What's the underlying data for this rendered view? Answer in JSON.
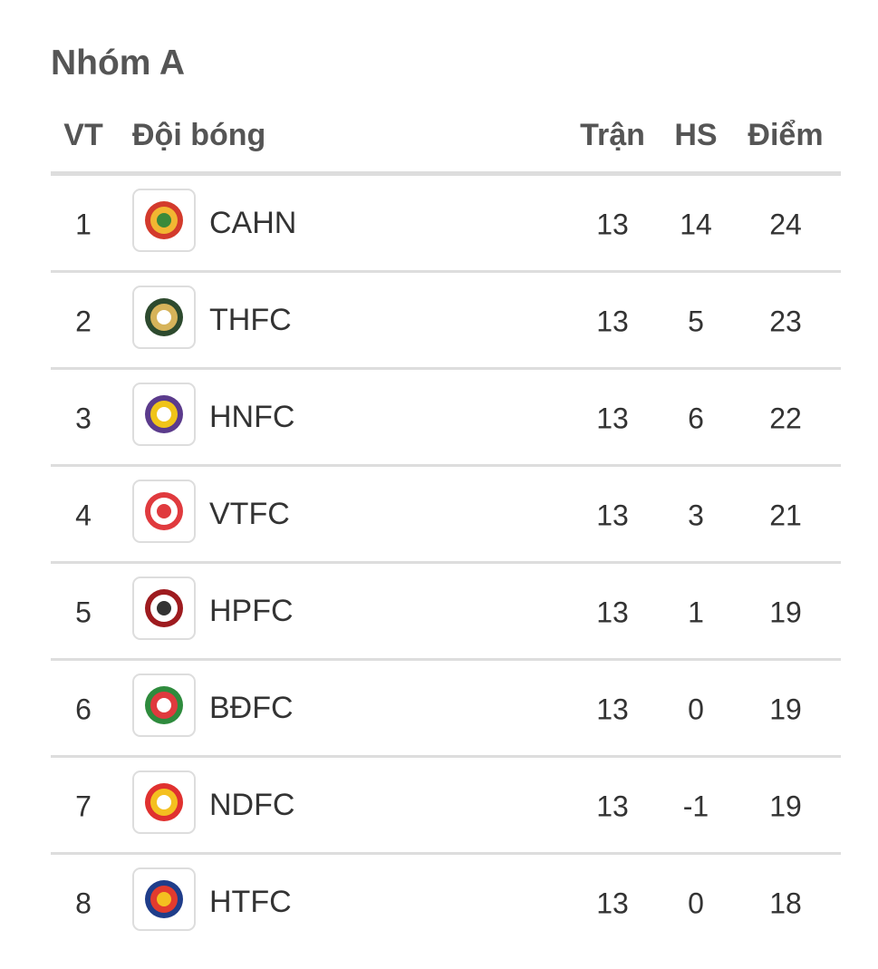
{
  "title": "Nhóm A",
  "headers": {
    "position": "VT",
    "team": "Đội bóng",
    "played": "Trận",
    "goal_diff": "HS",
    "points": "Điểm"
  },
  "rows": [
    {
      "position": "1",
      "team": "CAHN",
      "played": "13",
      "goal_diff": "14",
      "points": "24",
      "logo": "cahn-crest",
      "logo_colors": [
        "#d33a2c",
        "#f2b632",
        "#3a8a3a"
      ]
    },
    {
      "position": "2",
      "team": "THFC",
      "played": "13",
      "goal_diff": "5",
      "points": "23",
      "logo": "thfc-crest",
      "logo_colors": [
        "#2d4a2e",
        "#d6b35a",
        "#ffffff"
      ]
    },
    {
      "position": "3",
      "team": "HNFC",
      "played": "13",
      "goal_diff": "6",
      "points": "22",
      "logo": "hnfc-crest",
      "logo_colors": [
        "#5b3b8c",
        "#f0c419",
        "#ffffff"
      ]
    },
    {
      "position": "4",
      "team": "VTFC",
      "played": "13",
      "goal_diff": "3",
      "points": "21",
      "logo": "vtfc-crest",
      "logo_colors": [
        "#e03a3e",
        "#ffffff",
        "#e03a3e"
      ]
    },
    {
      "position": "5",
      "team": "HPFC",
      "played": "13",
      "goal_diff": "1",
      "points": "19",
      "logo": "hpfc-crest",
      "logo_colors": [
        "#9e1b1f",
        "#ffffff",
        "#333333"
      ]
    },
    {
      "position": "6",
      "team": "BĐFC",
      "played": "13",
      "goal_diff": "0",
      "points": "19",
      "logo": "bdfc-crest",
      "logo_colors": [
        "#2e8b3d",
        "#e03a3e",
        "#ffffff"
      ]
    },
    {
      "position": "7",
      "team": "NDFC",
      "played": "13",
      "goal_diff": "-1",
      "points": "19",
      "logo": "ndfc-crest",
      "logo_colors": [
        "#e0312f",
        "#f4c020",
        "#ffffff"
      ]
    },
    {
      "position": "8",
      "team": "HTFC",
      "played": "13",
      "goal_diff": "0",
      "points": "18",
      "logo": "htfc-crest",
      "logo_colors": [
        "#1f3d8a",
        "#e23b2e",
        "#f4c020"
      ]
    }
  ]
}
